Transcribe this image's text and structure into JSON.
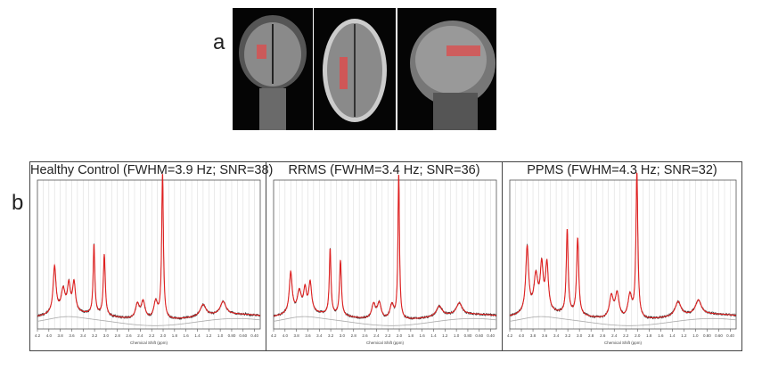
{
  "panel_a": {
    "label": "a",
    "views": [
      "coronal",
      "axial",
      "sagittal"
    ],
    "voxel_color": "#e04a4a"
  },
  "panel_b": {
    "label": "b",
    "x_axis_label": "Chemical Shift (ppm)",
    "x_ticks": [
      "4.2",
      "4.0",
      "3.8",
      "3.6",
      "3.4",
      "3.2",
      "3.0",
      "2.8",
      "2.6",
      "2.4",
      "2.2",
      "2.0",
      "1.8",
      "1.6",
      "1.4",
      "1.2",
      "1.0",
      "0.80",
      "0.60",
      "0.40"
    ],
    "fit_color": "#e02020",
    "data_color": "#333333",
    "baseline_color": "#aaaaaa",
    "spectra": [
      {
        "title": "Healthy Control (FWHM=3.9 Hz; SNR=38)"
      },
      {
        "title": "RRMS (FWHM=3.4 Hz; SNR=36)"
      },
      {
        "title": "PPMS (FWHM=4.3 Hz; SNR=32)"
      }
    ]
  }
}
